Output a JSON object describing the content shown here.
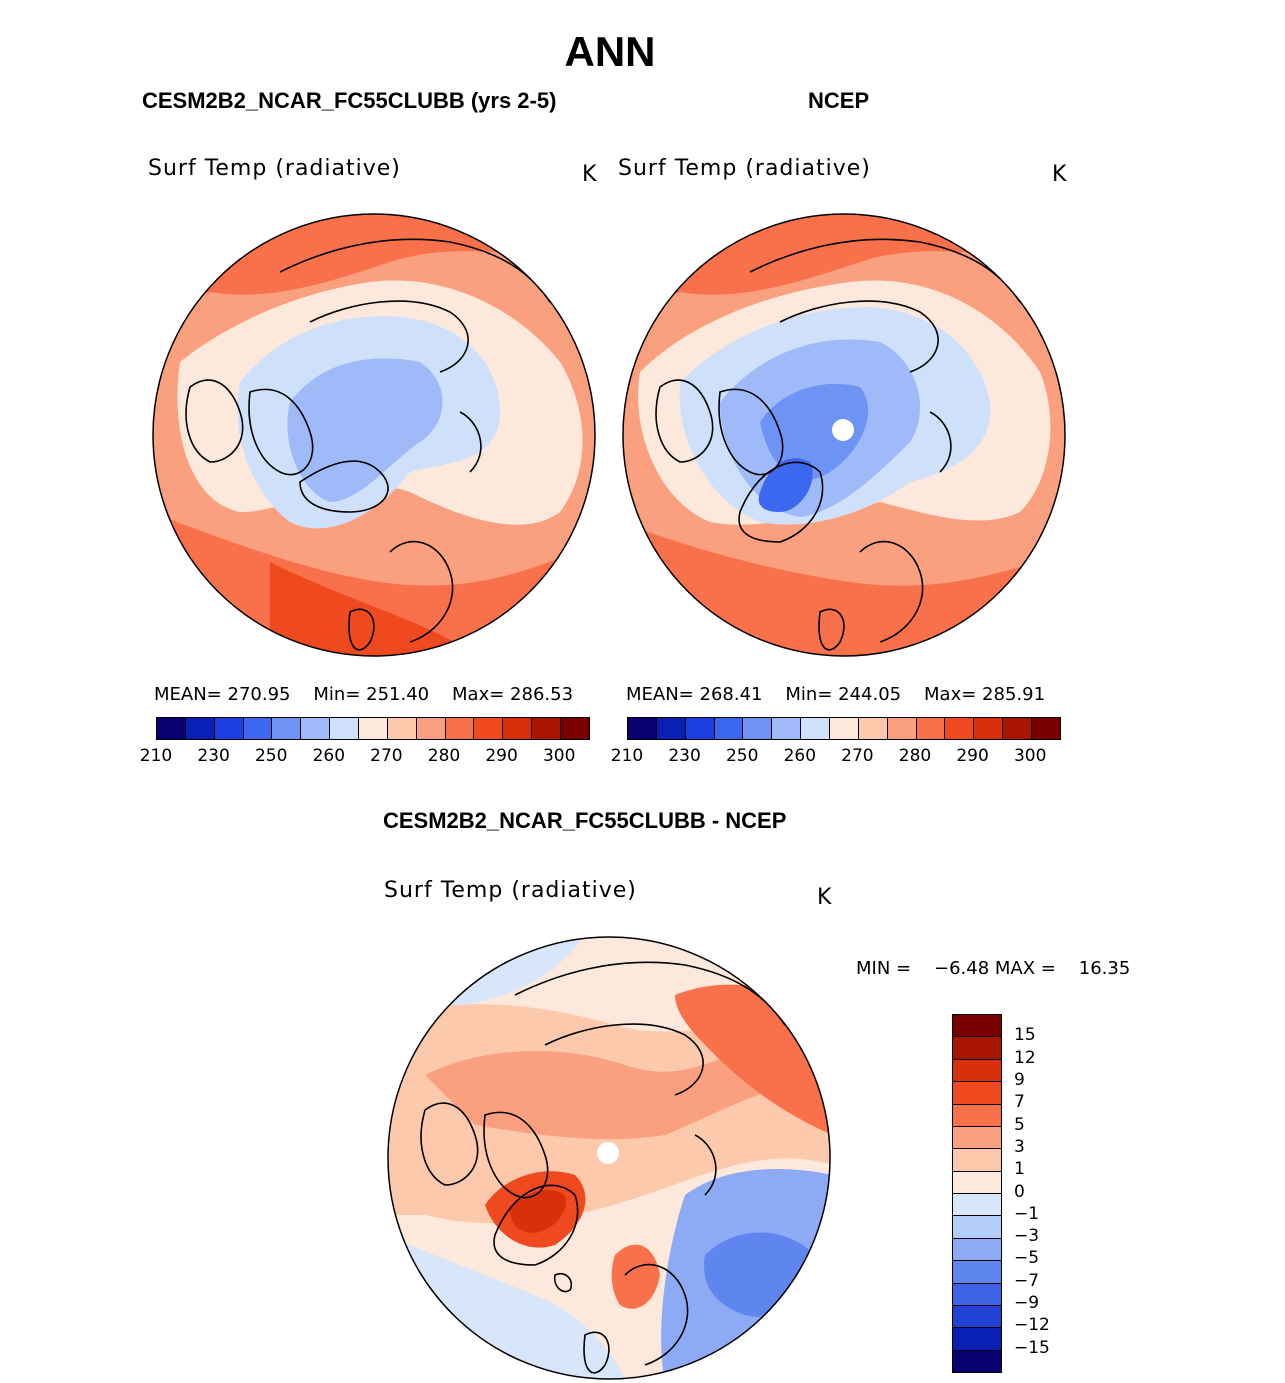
{
  "season": "ANN",
  "panels": [
    {
      "title": "CESM2B2_NCAR_FC55CLUBB (yrs 2-5)",
      "variable": "Surf Temp (radiative)",
      "units": "K",
      "stats": {
        "mean_label": "MEAN=",
        "mean": "270.95",
        "min_label": "Min=",
        "min": "251.40",
        "max_label": "Max=",
        "max": "286.53"
      },
      "colorbar_ticks": [
        "210",
        "230",
        "250",
        "260",
        "270",
        "280",
        "290",
        "300"
      ]
    },
    {
      "title": "NCEP",
      "variable": "Surf Temp (radiative)",
      "units": "K",
      "stats": {
        "mean_label": "MEAN=",
        "mean": "268.41",
        "min_label": "Min=",
        "min": "244.05",
        "max_label": "Max=",
        "max": "285.91"
      },
      "colorbar_ticks": [
        "210",
        "230",
        "250",
        "260",
        "270",
        "280",
        "290",
        "300"
      ]
    }
  ],
  "diff": {
    "title": "CESM2B2_NCAR_FC55CLUBB - NCEP",
    "variable": "Surf Temp (radiative)",
    "units": "K",
    "min_label": "MIN =",
    "min": "−6.48",
    "max_label": "MAX =",
    "max": "16.35",
    "colorbar_ticks": [
      "15",
      "12",
      "9",
      "7",
      "5",
      "3",
      "1",
      "0",
      "−1",
      "−3",
      "−5",
      "−7",
      "−9",
      "−12",
      "−15"
    ]
  },
  "colors": {
    "abs_scale": [
      "#08006e",
      "#0a1fb4",
      "#1c3fe0",
      "#3c68f0",
      "#6d93f5",
      "#9fbaf8",
      "#cfe0fb",
      "#fde9dc",
      "#fcc9ad",
      "#fba07e",
      "#f8714a",
      "#ef4a1f",
      "#d8300a",
      "#a81500",
      "#7a0000"
    ],
    "diff_scale": [
      "#7a0000",
      "#a81500",
      "#d8300a",
      "#ef4a1f",
      "#f8714a",
      "#fba07e",
      "#fcc9ad",
      "#fde9dc",
      "#d8e6fb",
      "#b3cdfa",
      "#8cabf4",
      "#5e86ee",
      "#3d63e6",
      "#2140d4",
      "#0a20b4",
      "#08006e"
    ]
  }
}
